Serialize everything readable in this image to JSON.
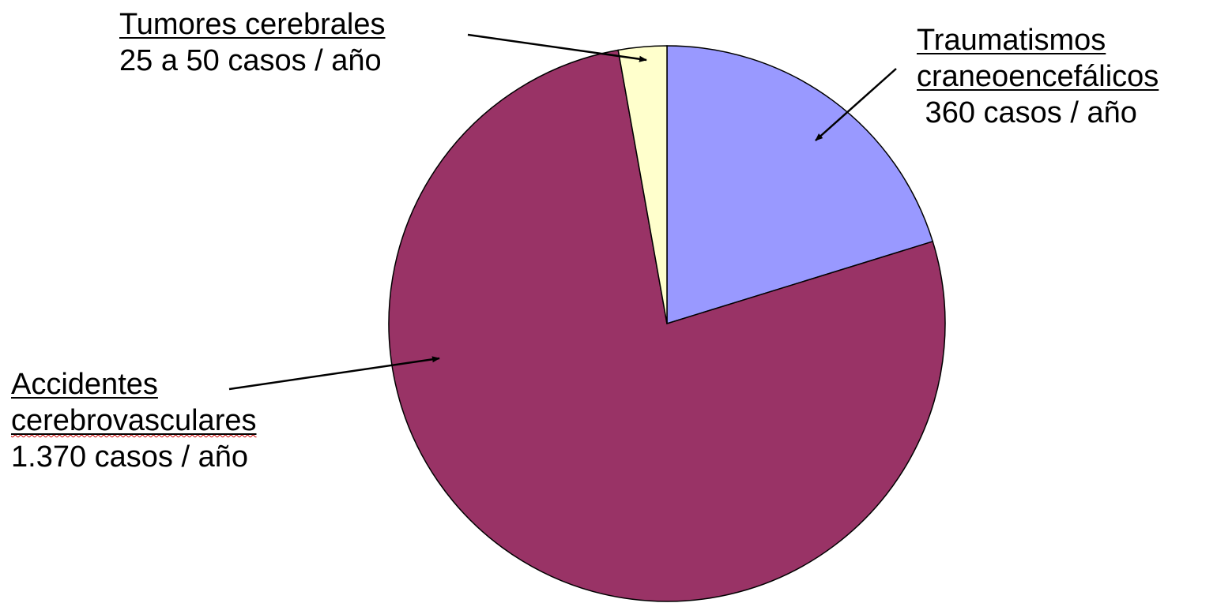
{
  "chart_data": {
    "type": "pie",
    "title": "",
    "unit": "casos / año",
    "slices": [
      {
        "name": "Traumatismos craneoencefálicos",
        "value": 360,
        "color": "#9999ff",
        "label_lines": [
          "Traumatismos",
          "craneoencefálicos",
          " 360 casos / año"
        ]
      },
      {
        "name": "Accidentes cerebrovasculares",
        "value": 1370,
        "color": "#993366",
        "label_lines": [
          "Accidentes",
          "cerebrovasculares",
          "1.370 casos / año"
        ]
      },
      {
        "name": "Tumores cerebrales",
        "value": 50,
        "range": [
          25,
          50
        ],
        "color": "#ffffcc",
        "label_lines": [
          "Tumores cerebrales",
          "25 a 50 casos / año"
        ]
      }
    ],
    "start_angle_deg": 0,
    "direction": "clockwise",
    "legend": "none",
    "annotations": "arrows from labels to slices"
  }
}
